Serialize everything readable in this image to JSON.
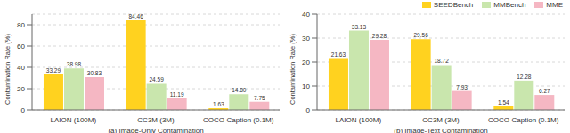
{
  "chart_data": [
    {
      "type": "bar",
      "x_label": "(a) Image-Only Contamination",
      "y_label": "Contamination Rate (%)",
      "categories": [
        "LAION (100M)",
        "CC3M (3M)",
        "COCO-Caption (0.1M)"
      ],
      "series": [
        {
          "name": "SEEDBench",
          "color": "#ffd21f",
          "values": [
            33.29,
            84.46,
            1.63
          ],
          "value_labels": [
            "33.29",
            "84.46",
            "1.63"
          ]
        },
        {
          "name": "MMBench",
          "color": "#c9e6ad",
          "values": [
            38.98,
            24.59,
            14.8
          ],
          "value_labels": [
            "38.98",
            "24.59",
            "14.80"
          ]
        },
        {
          "name": "MME",
          "color": "#f5b7c3",
          "values": [
            30.83,
            11.19,
            7.75
          ],
          "value_labels": [
            "30.83",
            "11.19",
            "7.75"
          ]
        }
      ],
      "ylim": [
        0,
        90
      ],
      "yticks": [
        0,
        20,
        40,
        60,
        80
      ],
      "grid": true,
      "data_labels": true
    },
    {
      "type": "bar",
      "x_label": "(b) Image-Text Contamination",
      "y_label": "Contamination Rate (%)",
      "categories": [
        "LAION (100M)",
        "CC3M (3M)",
        "COCO-Caption (0.1M)"
      ],
      "series": [
        {
          "name": "SEEDBench",
          "color": "#ffd21f",
          "values": [
            21.63,
            29.56,
            1.54
          ],
          "value_labels": [
            "21.63",
            "29.56",
            "1.54"
          ]
        },
        {
          "name": "MMBench",
          "color": "#c9e6ad",
          "values": [
            33.13,
            18.72,
            12.28
          ],
          "value_labels": [
            "33.13",
            "18.72",
            "12.28"
          ]
        },
        {
          "name": "MME",
          "color": "#f5b7c3",
          "values": [
            29.28,
            7.93,
            6.27
          ],
          "value_labels": [
            "29.28",
            "7.93",
            "6.27"
          ]
        }
      ],
      "ylim": [
        0,
        40
      ],
      "yticks": [
        0,
        10,
        20,
        30,
        40
      ],
      "grid": true,
      "data_labels": true,
      "legend": "upper right"
    }
  ]
}
